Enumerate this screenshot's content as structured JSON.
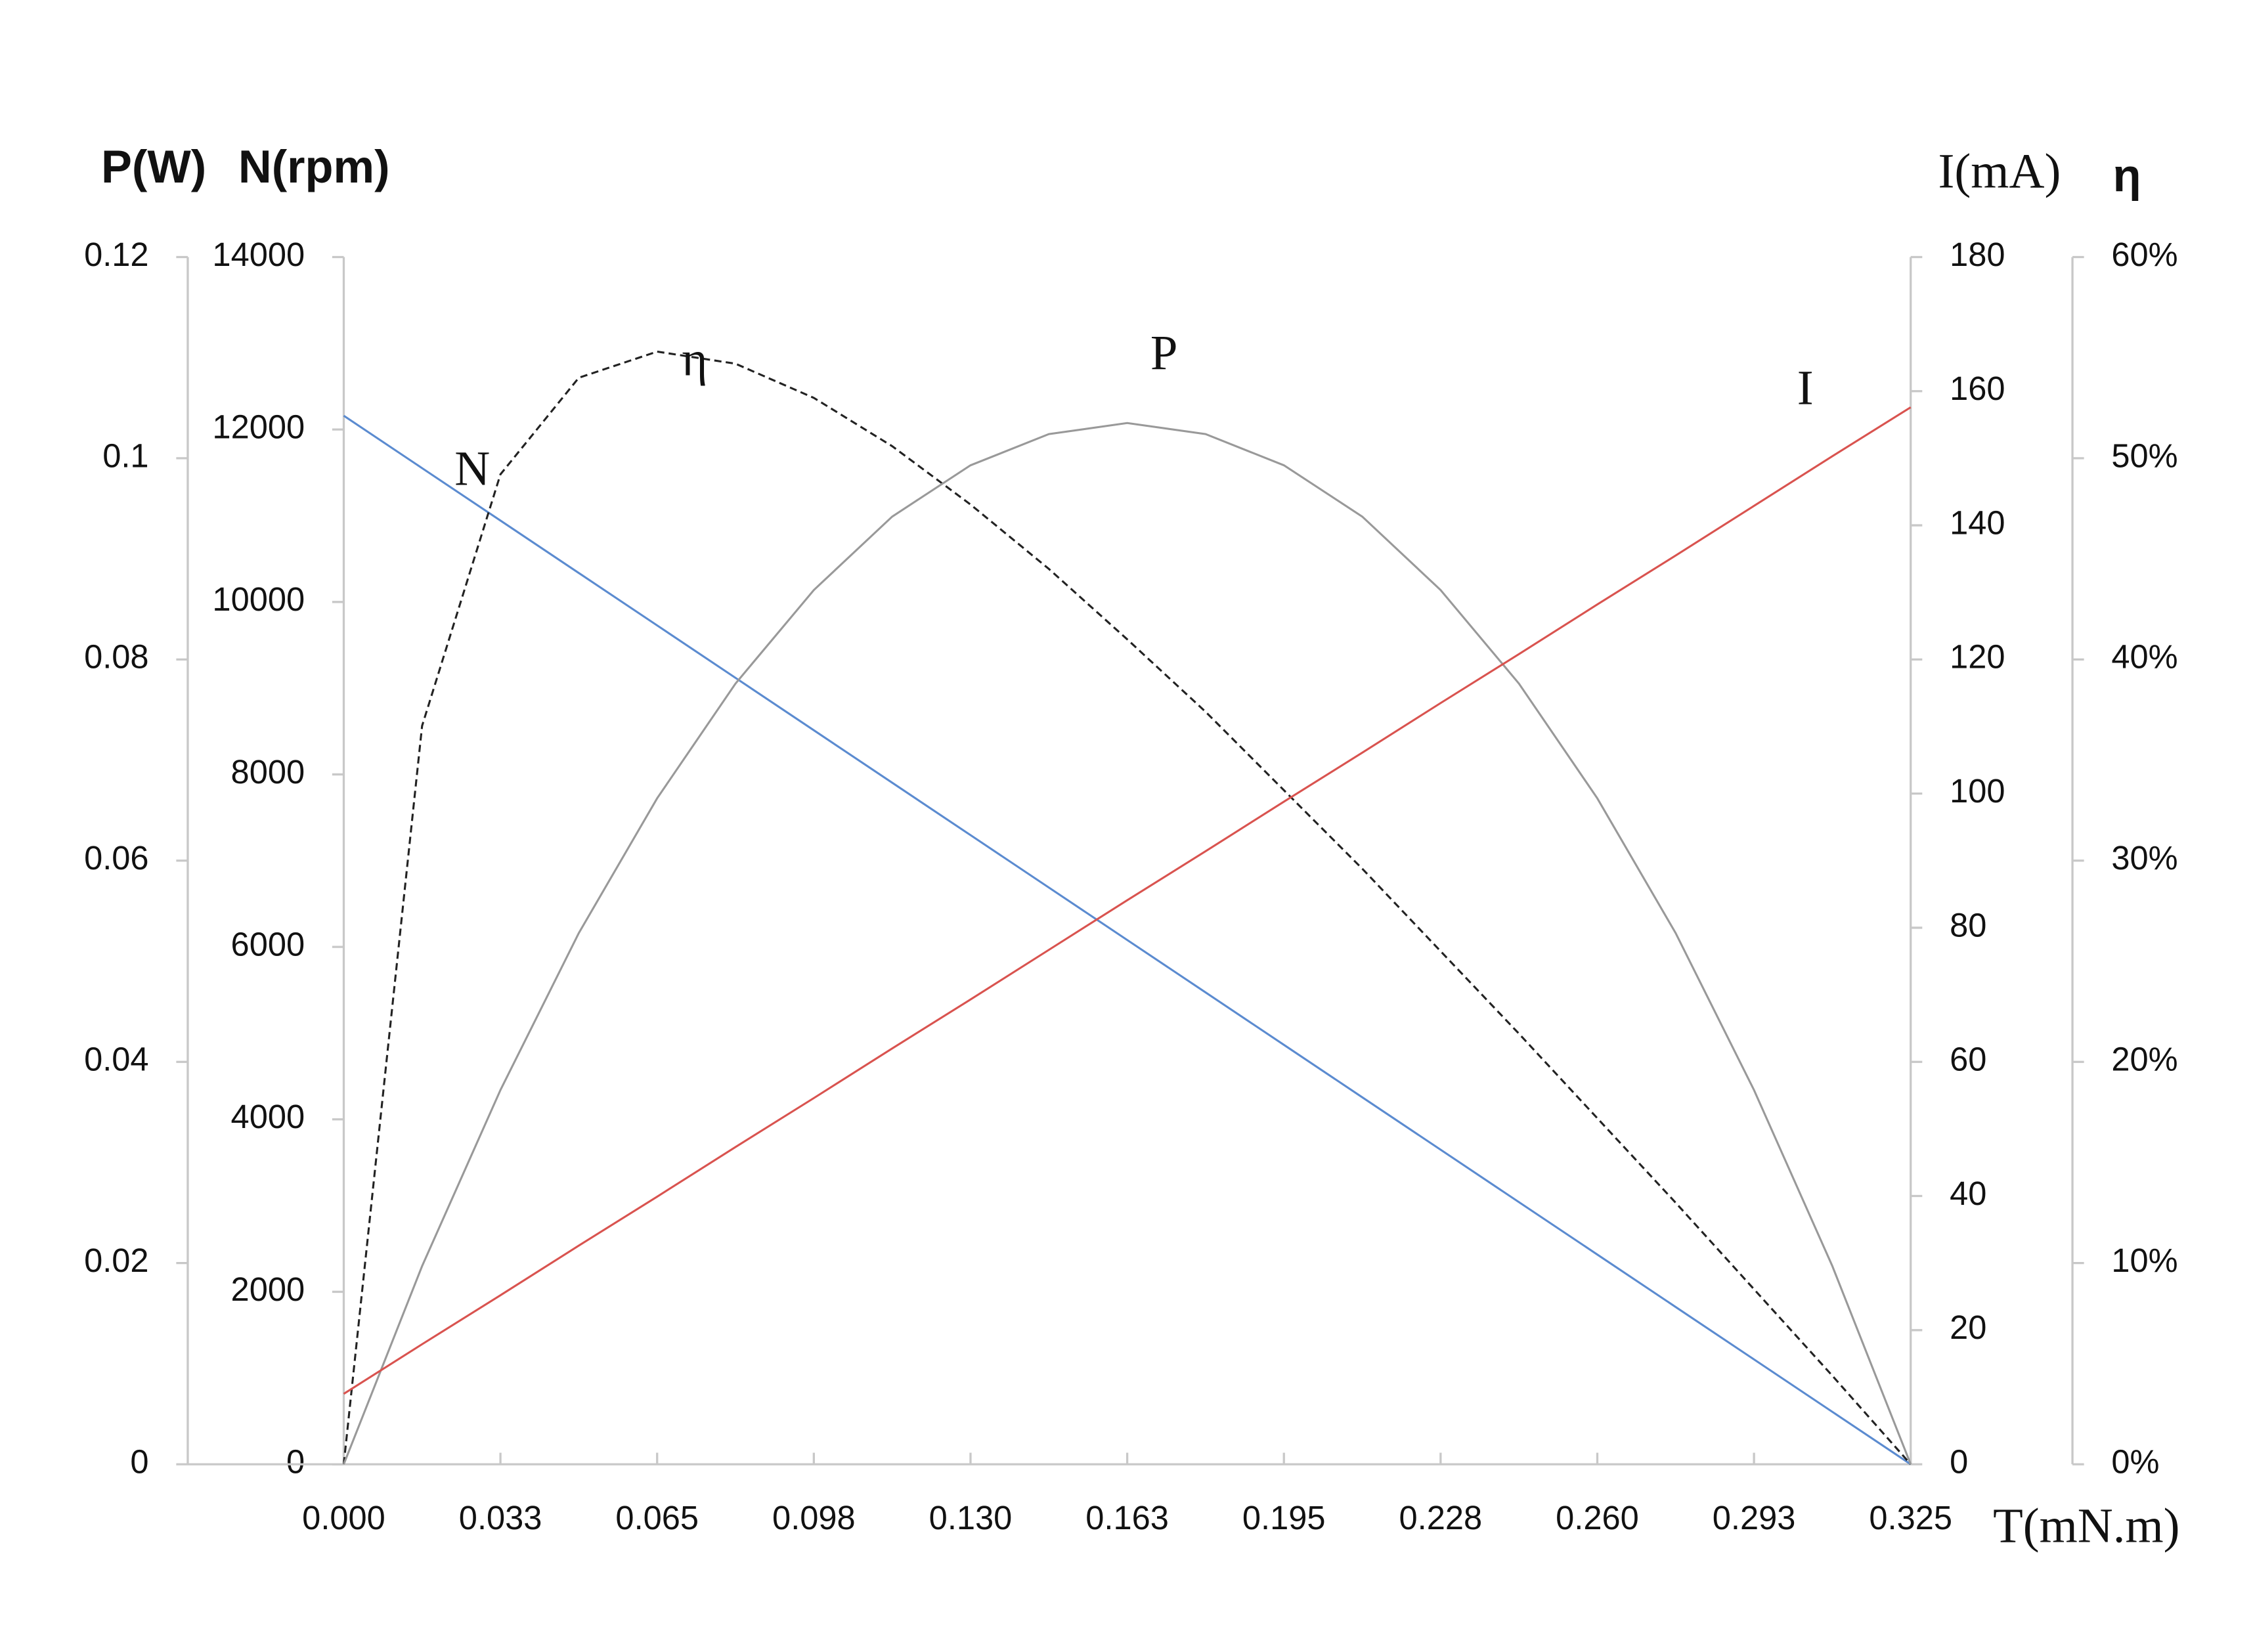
{
  "chart_data": {
    "type": "line",
    "xlabel": "T(mN.m)",
    "xlim": [
      0,
      0.325
    ],
    "xticks": [
      {
        "value": 0,
        "label": "0.000"
      },
      {
        "value": 0.0325,
        "label": "0.033"
      },
      {
        "value": 0.065,
        "label": "0.065"
      },
      {
        "value": 0.0975,
        "label": "0.098"
      },
      {
        "value": 0.13,
        "label": "0.130"
      },
      {
        "value": 0.1625,
        "label": "0.163"
      },
      {
        "value": 0.195,
        "label": "0.195"
      },
      {
        "value": 0.2275,
        "label": "0.228"
      },
      {
        "value": 0.26,
        "label": "0.260"
      },
      {
        "value": 0.2925,
        "label": "0.293"
      },
      {
        "value": 0.325,
        "label": "0.325"
      }
    ],
    "ylabel": "P(W)",
    "ylim": [
      0,
      0.12
    ],
    "yticks": [
      0,
      0.02,
      0.04,
      0.06,
      0.08,
      0.1,
      0.12
    ],
    "y2label": "N(rpm)",
    "y2lim": [
      0,
      14000
    ],
    "y2ticks": [
      0,
      2000,
      4000,
      6000,
      8000,
      10000,
      12000,
      14000
    ],
    "y3label": "I(mA)",
    "y3lim": [
      0,
      180
    ],
    "y3ticks": [
      0,
      20,
      40,
      60,
      80,
      100,
      120,
      140,
      160,
      180
    ],
    "y4label": "η",
    "y4lim": [
      0,
      60
    ],
    "y4ticks": [
      {
        "value": 0,
        "label": "0%"
      },
      {
        "value": 10,
        "label": "10%"
      },
      {
        "value": 20,
        "label": "20%"
      },
      {
        "value": 30,
        "label": "30%"
      },
      {
        "value": 40,
        "label": "40%"
      },
      {
        "value": 50,
        "label": "50%"
      },
      {
        "value": 60,
        "label": "60%"
      }
    ],
    "x": [
      0,
      0.01625,
      0.0325,
      0.04875,
      0.065,
      0.08125,
      0.0975,
      0.11375,
      0.13,
      0.14625,
      0.1625,
      0.17875,
      0.195,
      0.21125,
      0.2275,
      0.24375,
      0.26,
      0.27625,
      0.2925,
      0.30875,
      0.325
    ],
    "series": [
      {
        "name": "N",
        "color": "#5b8bd0",
        "axis": "y2",
        "dashed": false,
        "values": [
          12160,
          11552,
          10944,
          10336,
          9728,
          9120,
          8512,
          7904,
          7296,
          6688,
          6080,
          5472,
          4864,
          4256,
          3648,
          3040,
          2432,
          1824,
          1216,
          608,
          0
        ]
      },
      {
        "name": "η",
        "color": "#222222",
        "axis": "y4",
        "dashed": true,
        "values": [
          0,
          36.7,
          49.2,
          54.0,
          55.3,
          54.7,
          53.0,
          50.6,
          47.7,
          44.5,
          41.0,
          37.4,
          33.5,
          29.6,
          25.5,
          21.4,
          17.2,
          13.0,
          8.7,
          4.4,
          0
        ]
      },
      {
        "name": "P",
        "color": "#999999",
        "axis": "y",
        "dashed": false,
        "values": [
          0,
          0.0197,
          0.0372,
          0.0528,
          0.0662,
          0.0776,
          0.0869,
          0.0942,
          0.0993,
          0.1024,
          0.1035,
          0.1024,
          0.0993,
          0.0942,
          0.0869,
          0.0776,
          0.0662,
          0.0528,
          0.0372,
          0.0197,
          0
        ]
      },
      {
        "name": "I",
        "color": "#d9534f",
        "axis": "y3",
        "dashed": false,
        "values": [
          10.5,
          17.9,
          25.2,
          32.6,
          39.9,
          47.3,
          54.6,
          62.0,
          69.3,
          76.7,
          84.1,
          91.4,
          98.8,
          106.1,
          113.5,
          120.8,
          128.2,
          135.5,
          142.9,
          150.3,
          157.6
        ]
      }
    ]
  }
}
